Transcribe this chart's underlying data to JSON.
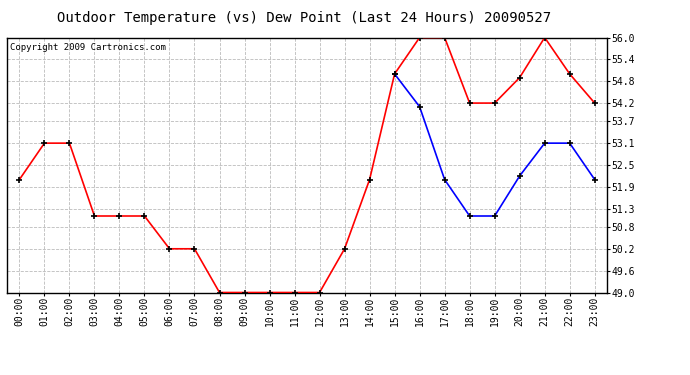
{
  "title": "Outdoor Temperature (vs) Dew Point (Last 24 Hours) 20090527",
  "copyright": "Copyright 2009 Cartronics.com",
  "x_labels": [
    "00:00",
    "01:00",
    "02:00",
    "03:00",
    "04:00",
    "05:00",
    "06:00",
    "07:00",
    "08:00",
    "09:00",
    "10:00",
    "11:00",
    "12:00",
    "13:00",
    "14:00",
    "15:00",
    "16:00",
    "17:00",
    "18:00",
    "19:00",
    "20:00",
    "21:00",
    "22:00",
    "23:00"
  ],
  "temp_red": [
    52.1,
    53.1,
    53.1,
    51.1,
    51.1,
    51.1,
    50.2,
    50.2,
    49.0,
    49.0,
    49.0,
    49.0,
    49.0,
    50.2,
    52.1,
    55.0,
    56.0,
    56.0,
    54.2,
    54.2,
    54.9,
    56.0,
    55.0,
    54.2
  ],
  "dew_blue": [
    null,
    null,
    null,
    null,
    null,
    null,
    null,
    null,
    null,
    null,
    null,
    null,
    null,
    null,
    null,
    55.0,
    54.1,
    52.1,
    51.1,
    51.1,
    52.2,
    53.1,
    53.1,
    52.1
  ],
  "ylim": [
    49.0,
    56.0
  ],
  "yticks": [
    49.0,
    49.6,
    50.2,
    50.8,
    51.3,
    51.9,
    52.5,
    53.1,
    53.7,
    54.2,
    54.8,
    55.4,
    56.0
  ],
  "bg_color": "#ffffff",
  "plot_bg": "#ffffff",
  "grid_color": "#bbbbbb",
  "red_color": "#ff0000",
  "blue_color": "#0000ff",
  "title_fontsize": 10,
  "tick_fontsize": 7,
  "copyright_fontsize": 6.5
}
